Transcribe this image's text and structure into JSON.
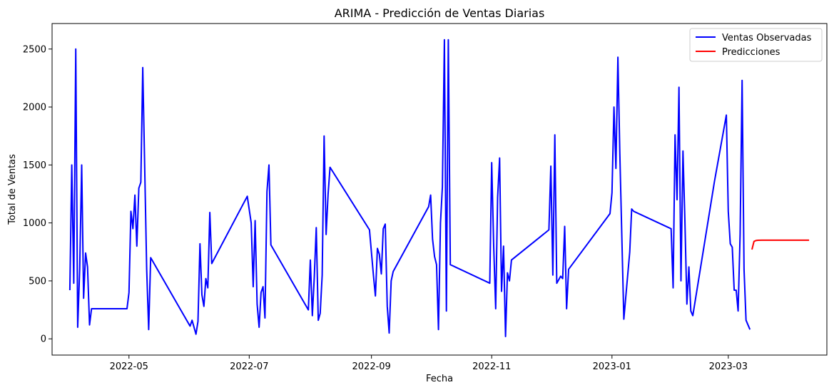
{
  "chart_data": {
    "type": "line",
    "title": "ARIMA - Predicción de Ventas Diarias",
    "xlabel": "Fecha",
    "ylabel": "Total de Ventas",
    "x_ticks": [
      {
        "date": "2022-05-01",
        "label": "2022-05"
      },
      {
        "date": "2022-07-01",
        "label": "2022-07"
      },
      {
        "date": "2022-09-01",
        "label": "2022-09"
      },
      {
        "date": "2022-11-01",
        "label": "2022-11"
      },
      {
        "date": "2023-01-01",
        "label": "2023-01"
      },
      {
        "date": "2023-03-01",
        "label": "2023-03"
      }
    ],
    "y_ticks": [
      0,
      500,
      1000,
      1500,
      2000,
      2500
    ],
    "xlim": [
      "2022-03-23",
      "2023-04-20"
    ],
    "ylim": [
      -140,
      2720
    ],
    "grid": false,
    "legend": {
      "placement": "top-right"
    },
    "series": [
      {
        "name": "Ventas Observadas",
        "color": "#0000ff",
        "points": [
          [
            "2022-04-01",
            420
          ],
          [
            "2022-04-02",
            1500
          ],
          [
            "2022-04-03",
            480
          ],
          [
            "2022-04-04",
            2500
          ],
          [
            "2022-04-05",
            100
          ],
          [
            "2022-04-06",
            600
          ],
          [
            "2022-04-07",
            1500
          ],
          [
            "2022-04-08",
            350
          ],
          [
            "2022-04-09",
            740
          ],
          [
            "2022-04-10",
            620
          ],
          [
            "2022-04-11",
            120
          ],
          [
            "2022-04-12",
            260
          ],
          [
            "2022-04-30",
            260
          ],
          [
            "2022-05-01",
            400
          ],
          [
            "2022-05-02",
            1100
          ],
          [
            "2022-05-03",
            950
          ],
          [
            "2022-05-04",
            1240
          ],
          [
            "2022-05-05",
            800
          ],
          [
            "2022-05-06",
            1300
          ],
          [
            "2022-05-07",
            1350
          ],
          [
            "2022-05-08",
            2340
          ],
          [
            "2022-05-10",
            600
          ],
          [
            "2022-05-11",
            80
          ],
          [
            "2022-05-12",
            700
          ],
          [
            "2022-06-01",
            110
          ],
          [
            "2022-06-02",
            160
          ],
          [
            "2022-06-04",
            40
          ],
          [
            "2022-06-05",
            150
          ],
          [
            "2022-06-06",
            820
          ],
          [
            "2022-06-07",
            380
          ],
          [
            "2022-06-08",
            280
          ],
          [
            "2022-06-09",
            520
          ],
          [
            "2022-06-10",
            440
          ],
          [
            "2022-06-11",
            1090
          ],
          [
            "2022-06-12",
            650
          ],
          [
            "2022-06-30",
            1230
          ],
          [
            "2022-07-02",
            1000
          ],
          [
            "2022-07-03",
            450
          ],
          [
            "2022-07-04",
            1020
          ],
          [
            "2022-07-05",
            300
          ],
          [
            "2022-07-06",
            100
          ],
          [
            "2022-07-07",
            400
          ],
          [
            "2022-07-08",
            450
          ],
          [
            "2022-07-09",
            180
          ],
          [
            "2022-07-10",
            1270
          ],
          [
            "2022-07-11",
            1500
          ],
          [
            "2022-07-12",
            810
          ],
          [
            "2022-07-31",
            250
          ],
          [
            "2022-08-01",
            680
          ],
          [
            "2022-08-02",
            200
          ],
          [
            "2022-08-03",
            530
          ],
          [
            "2022-08-04",
            960
          ],
          [
            "2022-08-05",
            160
          ],
          [
            "2022-08-06",
            220
          ],
          [
            "2022-08-07",
            550
          ],
          [
            "2022-08-08",
            1750
          ],
          [
            "2022-08-09",
            900
          ],
          [
            "2022-08-10",
            1250
          ],
          [
            "2022-08-11",
            1480
          ],
          [
            "2022-08-31",
            940
          ],
          [
            "2022-09-02",
            550
          ],
          [
            "2022-09-03",
            370
          ],
          [
            "2022-09-04",
            780
          ],
          [
            "2022-09-05",
            730
          ],
          [
            "2022-09-06",
            560
          ],
          [
            "2022-09-07",
            950
          ],
          [
            "2022-09-08",
            990
          ],
          [
            "2022-09-09",
            280
          ],
          [
            "2022-09-10",
            50
          ],
          [
            "2022-09-11",
            500
          ],
          [
            "2022-09-12",
            580
          ],
          [
            "2022-09-30",
            1140
          ],
          [
            "2022-10-01",
            1240
          ],
          [
            "2022-10-02",
            860
          ],
          [
            "2022-10-03",
            710
          ],
          [
            "2022-10-04",
            640
          ],
          [
            "2022-10-05",
            80
          ],
          [
            "2022-10-06",
            1000
          ],
          [
            "2022-10-07",
            1310
          ],
          [
            "2022-10-08",
            2580
          ],
          [
            "2022-10-09",
            240
          ],
          [
            "2022-10-10",
            2580
          ],
          [
            "2022-10-11",
            640
          ],
          [
            "2022-10-31",
            480
          ],
          [
            "2022-11-01",
            1520
          ],
          [
            "2022-11-02",
            800
          ],
          [
            "2022-11-03",
            260
          ],
          [
            "2022-11-04",
            1220
          ],
          [
            "2022-11-05",
            1560
          ],
          [
            "2022-11-06",
            410
          ],
          [
            "2022-11-07",
            800
          ],
          [
            "2022-11-08",
            20
          ],
          [
            "2022-11-09",
            570
          ],
          [
            "2022-11-10",
            500
          ],
          [
            "2022-11-11",
            680
          ],
          [
            "2022-11-30",
            940
          ],
          [
            "2022-12-01",
            1490
          ],
          [
            "2022-12-02",
            550
          ],
          [
            "2022-12-03",
            1760
          ],
          [
            "2022-12-04",
            480
          ],
          [
            "2022-12-06",
            540
          ],
          [
            "2022-12-07",
            520
          ],
          [
            "2022-12-08",
            970
          ],
          [
            "2022-12-09",
            260
          ],
          [
            "2022-12-10",
            600
          ],
          [
            "2022-12-31",
            1080
          ],
          [
            "2023-01-01",
            1260
          ],
          [
            "2023-01-02",
            2000
          ],
          [
            "2023-01-03",
            1470
          ],
          [
            "2023-01-04",
            2430
          ],
          [
            "2023-01-05",
            1600
          ],
          [
            "2023-01-07",
            170
          ],
          [
            "2023-01-10",
            750
          ],
          [
            "2023-01-11",
            1120
          ],
          [
            "2023-01-12",
            1100
          ],
          [
            "2023-01-31",
            950
          ],
          [
            "2023-02-01",
            440
          ],
          [
            "2023-02-02",
            1760
          ],
          [
            "2023-02-03",
            1200
          ],
          [
            "2023-02-04",
            2170
          ],
          [
            "2023-02-05",
            500
          ],
          [
            "2023-02-06",
            1620
          ],
          [
            "2023-02-07",
            1020
          ],
          [
            "2023-02-08",
            300
          ],
          [
            "2023-02-09",
            620
          ],
          [
            "2023-02-10",
            240
          ],
          [
            "2023-02-11",
            200
          ],
          [
            "2023-02-22",
            1360
          ],
          [
            "2023-02-28",
            1930
          ],
          [
            "2023-03-01",
            1100
          ],
          [
            "2023-03-02",
            820
          ],
          [
            "2023-03-03",
            790
          ],
          [
            "2023-03-04",
            420
          ],
          [
            "2023-03-05",
            420
          ],
          [
            "2023-03-06",
            240
          ],
          [
            "2023-03-07",
            900
          ],
          [
            "2023-03-08",
            2230
          ],
          [
            "2023-03-09",
            600
          ],
          [
            "2023-03-10",
            160
          ],
          [
            "2023-03-12",
            80
          ]
        ]
      },
      {
        "name": "Predicciones",
        "color": "#ff0000",
        "points": [
          [
            "2023-03-13",
            770
          ],
          [
            "2023-03-14",
            840
          ],
          [
            "2023-03-15",
            848
          ],
          [
            "2023-03-16",
            850
          ],
          [
            "2023-03-18",
            851
          ],
          [
            "2023-03-25",
            851
          ],
          [
            "2023-04-01",
            851
          ],
          [
            "2023-04-08",
            851
          ],
          [
            "2023-04-11",
            851
          ]
        ]
      }
    ]
  }
}
